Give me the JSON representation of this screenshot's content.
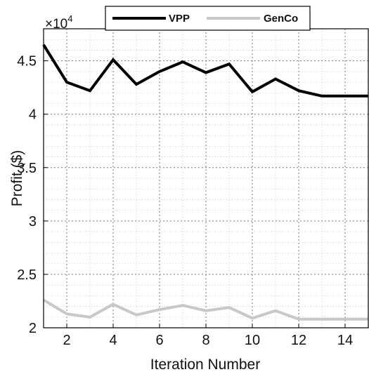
{
  "chart_data": {
    "type": "line",
    "xlabel": "Iteration Number",
    "ylabel": "Profit ($)",
    "y_multiplier_base": "×10",
    "y_multiplier_exponent": "4",
    "xlim": [
      1,
      15
    ],
    "ylim": [
      2.0,
      4.8
    ],
    "y_scale_factor": 10000,
    "x_ticks": [
      2,
      4,
      6,
      8,
      10,
      12,
      14
    ],
    "y_ticks": [
      2,
      2.5,
      3,
      3.5,
      4,
      4.5
    ],
    "y_tick_labels": [
      "2",
      "2.5",
      "3",
      "3.5",
      "4",
      "4.5"
    ],
    "grid": true,
    "legend_position": "top-center",
    "x": [
      1,
      2,
      3,
      4,
      5,
      6,
      7,
      8,
      9,
      10,
      11,
      12,
      13,
      14,
      15
    ],
    "series": [
      {
        "name": "VPP",
        "color": "#000000",
        "values": [
          4.65,
          4.3,
          4.22,
          4.51,
          4.28,
          4.4,
          4.49,
          4.39,
          4.47,
          4.21,
          4.33,
          4.22,
          4.17,
          4.17,
          4.17
        ]
      },
      {
        "name": "GenCo",
        "color": "#c8c8c8",
        "values": [
          2.26,
          2.13,
          2.1,
          2.22,
          2.12,
          2.17,
          2.21,
          2.16,
          2.19,
          2.09,
          2.16,
          2.08,
          2.08,
          2.08,
          2.08
        ]
      }
    ]
  }
}
